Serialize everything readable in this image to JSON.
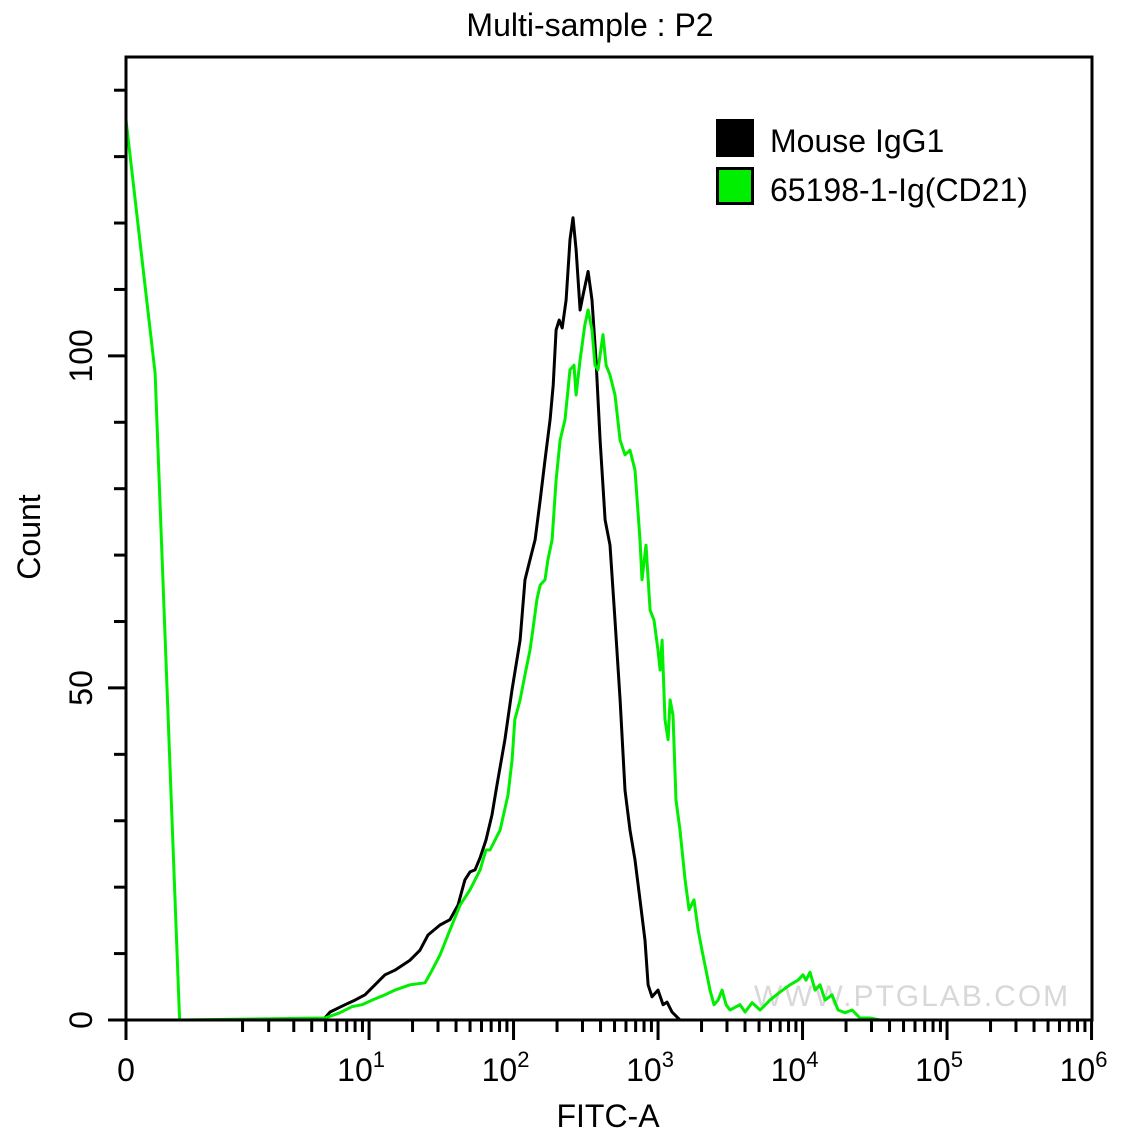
{
  "chart_data": {
    "type": "histogram-line",
    "title": "Multi-sample : P2",
    "xlabel": "FITC-A",
    "ylabel": "Count",
    "x_scale": "biexponential",
    "xlim": [
      0,
      1000000
    ],
    "ylim": [
      0,
      145
    ],
    "grid": false,
    "legend_position": "top-right",
    "x_ticks": [
      {
        "value": 0,
        "base": "0",
        "exp": ""
      },
      {
        "value": 10,
        "base": "10",
        "exp": "1"
      },
      {
        "value": 100,
        "base": "10",
        "exp": "2"
      },
      {
        "value": 1000,
        "base": "10",
        "exp": "3"
      },
      {
        "value": 10000,
        "base": "10",
        "exp": "4"
      },
      {
        "value": 100000,
        "base": "10",
        "exp": "5"
      },
      {
        "value": 1000000,
        "base": "10",
        "exp": "6"
      }
    ],
    "y_ticks": [
      {
        "value": 0,
        "label": "0"
      },
      {
        "value": 50,
        "label": "50"
      },
      {
        "value": 100,
        "label": "100"
      }
    ],
    "series": [
      {
        "name": "Mouse IgG1",
        "color": "#000000",
        "x": [
          4.8,
          5.37,
          6.82,
          7.99,
          9.37,
          11.0,
          12.9,
          15.1,
          19.2,
          22.5,
          25.6,
          31.0,
          36.3,
          41.3,
          46.1,
          50.0,
          54.1,
          58.6,
          64.5,
          70.9,
          76.8,
          87.2,
          97.6,
          111,
          120,
          130,
          141,
          153,
          165,
          179,
          188,
          197,
          207,
          217,
          231,
          246,
          258,
          271,
          289,
          303,
          328,
          349,
          372,
          397,
          430,
          465,
          504,
          546,
          591,
          640,
          693,
          750,
          813,
          853,
          908,
          1000,
          1084,
          1154,
          1250,
          1420
        ],
        "y": [
          0,
          1.2,
          2.3,
          3.0,
          3.8,
          5.3,
          6.8,
          7.5,
          9.0,
          10.5,
          12.8,
          14.3,
          15.1,
          17.3,
          21.1,
          22.3,
          22.6,
          24.4,
          27.1,
          30.9,
          35.4,
          42.2,
          49.7,
          57.2,
          66.3,
          69.3,
          72.3,
          78.3,
          84.3,
          90.4,
          95.6,
          103.9,
          105.4,
          104.2,
          108.4,
          117.5,
          120.8,
          116.0,
          106.9,
          109.2,
          112.7,
          108.4,
          99.4,
          87.3,
          75.3,
          71.5,
          60.2,
          48.2,
          34.6,
          28.6,
          24.1,
          18.1,
          12.0,
          5.3,
          3.5,
          4.5,
          2.3,
          2.7,
          1.2,
          0
        ]
      },
      {
        "name": "65198-1-Ig(CD21)",
        "color": "#00ee00",
        "x": [
          0,
          0,
          0.2,
          0.4,
          4.96,
          6.29,
          7.61,
          8.94,
          10.5,
          12.9,
          15.1,
          19.2,
          24.4,
          27.3,
          31.0,
          36.4,
          42.7,
          50.0,
          58.7,
          64.5,
          68.7,
          80.7,
          91.6,
          97.7,
          102,
          111,
          120,
          130,
          136,
          145,
          153,
          165,
          173,
          185,
          197,
          210,
          227,
          246,
          262,
          271,
          289,
          312,
          328,
          349,
          366,
          384,
          416,
          437,
          465,
          504,
          546,
          591,
          640,
          693,
          750,
          775,
          826,
          881,
          938,
          1000,
          1033,
          1067,
          1118,
          1173,
          1211,
          1270,
          1332,
          1420,
          1538,
          1640,
          1775,
          1892,
          2015,
          2148,
          2290,
          2441,
          2602,
          2774,
          2957,
          3150,
          3693,
          4002,
          4475,
          5082,
          5957,
          6982,
          8184,
          9306,
          10070,
          10570,
          11270,
          12210,
          13210,
          14320,
          16000,
          17620,
          19690,
          22020,
          25000,
          29310,
          34360
        ],
        "y": [
          0,
          135.5,
          97.4,
          0,
          0.3,
          1.1,
          2.0,
          2.3,
          3.0,
          3.8,
          4.5,
          5.3,
          5.6,
          7.5,
          9.8,
          13.6,
          17.3,
          19.6,
          22.6,
          25.6,
          25.6,
          28.6,
          33.9,
          39.2,
          45.2,
          48.2,
          52.0,
          55.7,
          58.7,
          63.3,
          65.5,
          66.3,
          69.3,
          72.3,
          81.3,
          87.3,
          90.4,
          97.9,
          98.6,
          94.1,
          99.4,
          104.7,
          106.9,
          103.9,
          98.6,
          97.9,
          103.2,
          98.6,
          97.1,
          94.1,
          87.3,
          85.1,
          85.8,
          82.8,
          72.3,
          66.3,
          71.5,
          61.7,
          60.2,
          55.7,
          52.7,
          57.2,
          45.2,
          42.2,
          48.2,
          45.9,
          33.1,
          28.6,
          21.1,
          16.6,
          18.1,
          13.6,
          10.5,
          7.5,
          4.5,
          2.3,
          3.0,
          4.5,
          2.3,
          1.5,
          2.3,
          1.2,
          2.6,
          1.5,
          3.0,
          4.2,
          5.3,
          6.0,
          6.8,
          6.0,
          7.2,
          4.5,
          5.3,
          3.0,
          3.8,
          1.5,
          1.1,
          1.5,
          0.3,
          0.3,
          0
        ]
      }
    ],
    "watermark": "WWW.PTGLAB.COM"
  }
}
